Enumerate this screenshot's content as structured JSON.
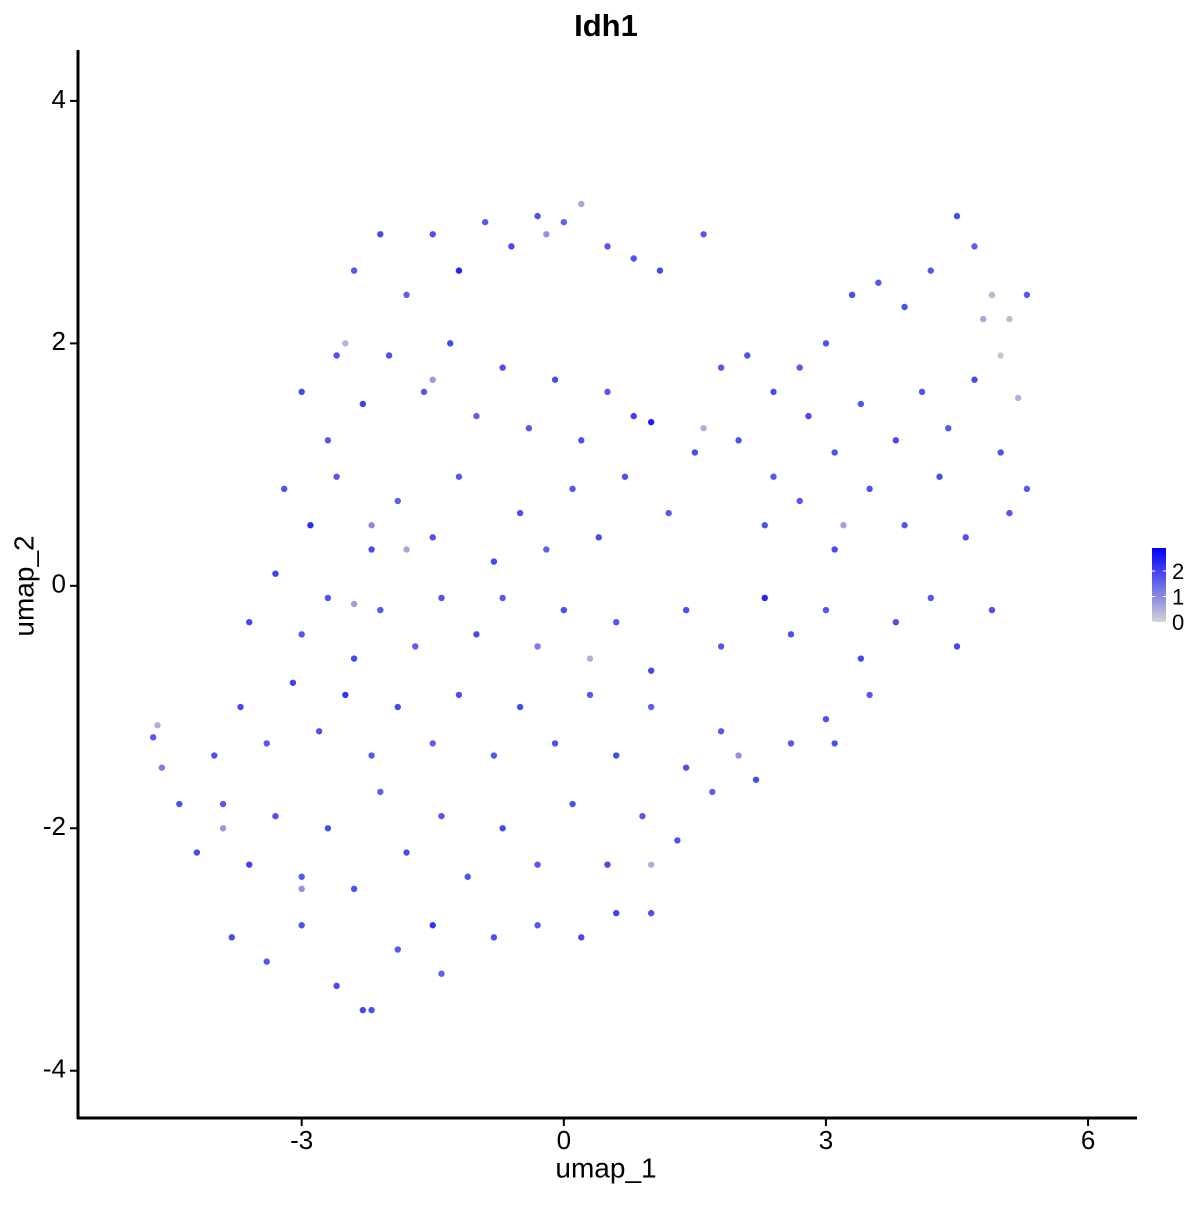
{
  "chart_data": {
    "type": "scatter",
    "title": "Idh1",
    "x_label": "umap_1",
    "y_label": "umap_2",
    "x": [
      -2.6,
      -2.4,
      -2.1,
      -1.8,
      -1.5,
      -1.2,
      -0.9,
      -0.6,
      -0.3,
      0.0,
      0.2,
      0.5,
      0.8,
      1.1,
      1.6,
      -0.2,
      -3.0,
      -2.7,
      -2.3,
      -2.0,
      -1.6,
      -1.3,
      -1.0,
      -0.7,
      -0.4,
      -0.1,
      0.2,
      0.5,
      0.8,
      1.0,
      -2.5,
      -1.5,
      -3.2,
      -2.9,
      -2.6,
      -2.2,
      -1.9,
      -1.5,
      -1.2,
      -0.8,
      -0.5,
      -0.2,
      0.1,
      0.4,
      0.7,
      1.2,
      1.5,
      -2.2,
      -1.8,
      -3.6,
      -3.3,
      -3.0,
      -2.7,
      -2.4,
      -2.1,
      -1.7,
      -1.4,
      -1.0,
      -0.7,
      -0.3,
      0.0,
      0.3,
      0.6,
      1.0,
      1.4,
      1.8,
      2.3,
      -2.4,
      -4.0,
      -3.7,
      -3.4,
      -3.1,
      -2.8,
      -2.5,
      -2.2,
      -1.9,
      -1.5,
      -1.2,
      -0.8,
      -0.5,
      -0.1,
      0.3,
      0.6,
      1.0,
      1.4,
      1.8,
      2.2,
      2.6,
      3.0,
      2.0,
      -4.2,
      -3.9,
      -3.6,
      -3.3,
      -3.0,
      -2.7,
      -2.4,
      -2.1,
      -1.8,
      -1.4,
      -1.1,
      -0.7,
      -0.3,
      0.1,
      0.5,
      0.9,
      1.3,
      1.7,
      1.0,
      -3.9,
      -3.0,
      -3.8,
      -3.4,
      -3.0,
      -2.6,
      -2.2,
      -1.9,
      -1.5,
      -1.4,
      -0.8,
      -0.3,
      0.2,
      0.6,
      1.0,
      -2.3,
      -4.7,
      -4.65,
      -4.6,
      -4.4,
      1.8,
      2.1,
      2.4,
      2.7,
      3.0,
      3.3,
      3.6,
      3.9,
      4.2,
      4.5,
      4.7,
      4.9,
      5.1,
      5.3,
      5.0,
      5.2,
      4.8,
      2.0,
      2.4,
      2.8,
      3.1,
      3.4,
      3.8,
      4.1,
      4.4,
      4.7,
      5.0,
      5.3,
      1.6,
      2.3,
      2.7,
      3.1,
      3.5,
      3.9,
      4.3,
      4.6,
      5.1,
      3.2,
      2.6,
      3.0,
      3.4,
      3.8,
      4.2,
      4.5,
      4.9,
      3.5,
      3.1
    ],
    "y": [
      1.9,
      2.6,
      2.9,
      2.4,
      2.9,
      2.6,
      3.0,
      2.8,
      3.05,
      3.0,
      3.15,
      2.8,
      2.7,
      2.6,
      2.9,
      2.9,
      1.6,
      1.2,
      1.5,
      1.9,
      1.6,
      2.0,
      1.4,
      1.8,
      1.3,
      1.7,
      1.2,
      1.6,
      1.4,
      1.35,
      2.0,
      1.7,
      0.8,
      0.5,
      0.9,
      0.3,
      0.7,
      0.4,
      0.9,
      0.2,
      0.6,
      0.3,
      0.8,
      0.4,
      0.9,
      0.6,
      1.1,
      0.5,
      0.3,
      -0.3,
      0.1,
      -0.4,
      -0.1,
      -0.6,
      -0.2,
      -0.5,
      -0.1,
      -0.4,
      -0.1,
      -0.5,
      -0.2,
      -0.6,
      -0.3,
      -0.7,
      -0.2,
      -0.5,
      -0.1,
      -0.15,
      -1.4,
      -1.0,
      -1.3,
      -0.8,
      -1.2,
      -0.9,
      -1.4,
      -1.0,
      -1.3,
      -0.9,
      -1.4,
      -1.0,
      -1.3,
      -0.9,
      -1.4,
      -1.0,
      -1.5,
      -1.2,
      -1.6,
      -1.3,
      -1.1,
      -1.4,
      -2.2,
      -1.8,
      -2.3,
      -1.9,
      -2.4,
      -2.0,
      -2.5,
      -1.7,
      -2.2,
      -1.9,
      -2.4,
      -2.0,
      -2.3,
      -1.8,
      -2.3,
      -1.9,
      -2.1,
      -1.7,
      -2.3,
      -2.0,
      -2.5,
      -2.9,
      -3.1,
      -2.8,
      -3.3,
      -3.5,
      -3.0,
      -2.8,
      -3.2,
      -2.9,
      -2.8,
      -2.9,
      -2.7,
      -2.7,
      -3.5,
      -1.25,
      -1.15,
      -1.5,
      -1.8,
      1.8,
      1.9,
      1.6,
      1.8,
      2.0,
      2.4,
      2.5,
      2.3,
      2.6,
      3.05,
      2.8,
      2.4,
      2.2,
      2.4,
      1.9,
      1.55,
      2.2,
      1.2,
      0.9,
      1.4,
      1.1,
      1.5,
      1.2,
      1.6,
      1.3,
      1.7,
      1.1,
      0.8,
      1.3,
      0.5,
      0.7,
      0.3,
      0.8,
      0.5,
      0.9,
      0.4,
      0.6,
      0.5,
      -0.4,
      -0.2,
      -0.6,
      -0.3,
      -0.1,
      -0.5,
      -0.2,
      -0.9,
      -1.3
    ],
    "values": [
      1.8,
      1.7,
      1.9,
      1.6,
      1.8,
      2.4,
      1.7,
      1.9,
      1.8,
      1.6,
      0.6,
      1.7,
      1.8,
      1.9,
      1.7,
      0.9,
      1.9,
      1.7,
      2.0,
      1.8,
      1.7,
      1.9,
      1.6,
      1.8,
      1.7,
      1.9,
      1.8,
      1.7,
      2.0,
      2.5,
      0.4,
      0.8,
      1.8,
      2.3,
      1.7,
      1.9,
      1.6,
      1.8,
      1.7,
      1.9,
      1.8,
      1.6,
      1.7,
      1.9,
      1.8,
      1.7,
      1.9,
      1.0,
      0.6,
      1.9,
      2.0,
      1.7,
      1.8,
      1.9,
      1.7,
      1.6,
      1.8,
      1.9,
      1.7,
      1.2,
      1.8,
      0.5,
      1.7,
      1.9,
      1.8,
      1.7,
      2.4,
      0.7,
      1.8,
      1.9,
      1.7,
      2.0,
      1.8,
      2.2,
      1.7,
      1.9,
      1.6,
      1.8,
      1.7,
      1.9,
      1.8,
      1.7,
      1.9,
      1.6,
      1.8,
      1.7,
      1.9,
      1.7,
      1.8,
      0.9,
      1.9,
      1.7,
      2.0,
      1.8,
      1.7,
      1.9,
      1.8,
      1.6,
      1.9,
      1.7,
      1.8,
      1.9,
      1.7,
      1.8,
      1.9,
      1.7,
      1.8,
      1.6,
      0.5,
      0.8,
      0.9,
      1.9,
      1.7,
      1.8,
      1.9,
      1.8,
      1.7,
      2.2,
      1.6,
      1.8,
      1.7,
      1.9,
      2.0,
      1.8,
      1.9,
      1.7,
      0.5,
      1.2,
      1.8,
      1.7,
      1.8,
      1.9,
      1.7,
      1.8,
      1.9,
      1.7,
      1.8,
      1.7,
      1.9,
      1.6,
      0.4,
      0.3,
      1.7,
      0.2,
      0.5,
      0.6,
      1.8,
      1.7,
      1.9,
      1.8,
      1.7,
      1.9,
      1.8,
      1.7,
      1.9,
      1.8,
      1.7,
      0.5,
      1.8,
      1.7,
      1.9,
      1.8,
      1.7,
      1.9,
      1.8,
      1.7,
      0.7,
      1.8,
      1.7,
      1.9,
      1.8,
      1.7,
      1.9,
      1.8,
      1.7,
      1.8
    ],
    "xlim": [
      -5.56,
      6.56
    ],
    "ylim": [
      -4.39,
      4.42
    ],
    "xticks": [
      -3,
      0,
      3,
      6
    ],
    "yticks": [
      -4,
      -2,
      0,
      2,
      4
    ],
    "colorbar": {
      "low_color": "#d3d3d3",
      "high_color": "#0000ff",
      "lim": [
        0,
        2.9
      ],
      "ticks": [
        0,
        1,
        2
      ]
    }
  }
}
